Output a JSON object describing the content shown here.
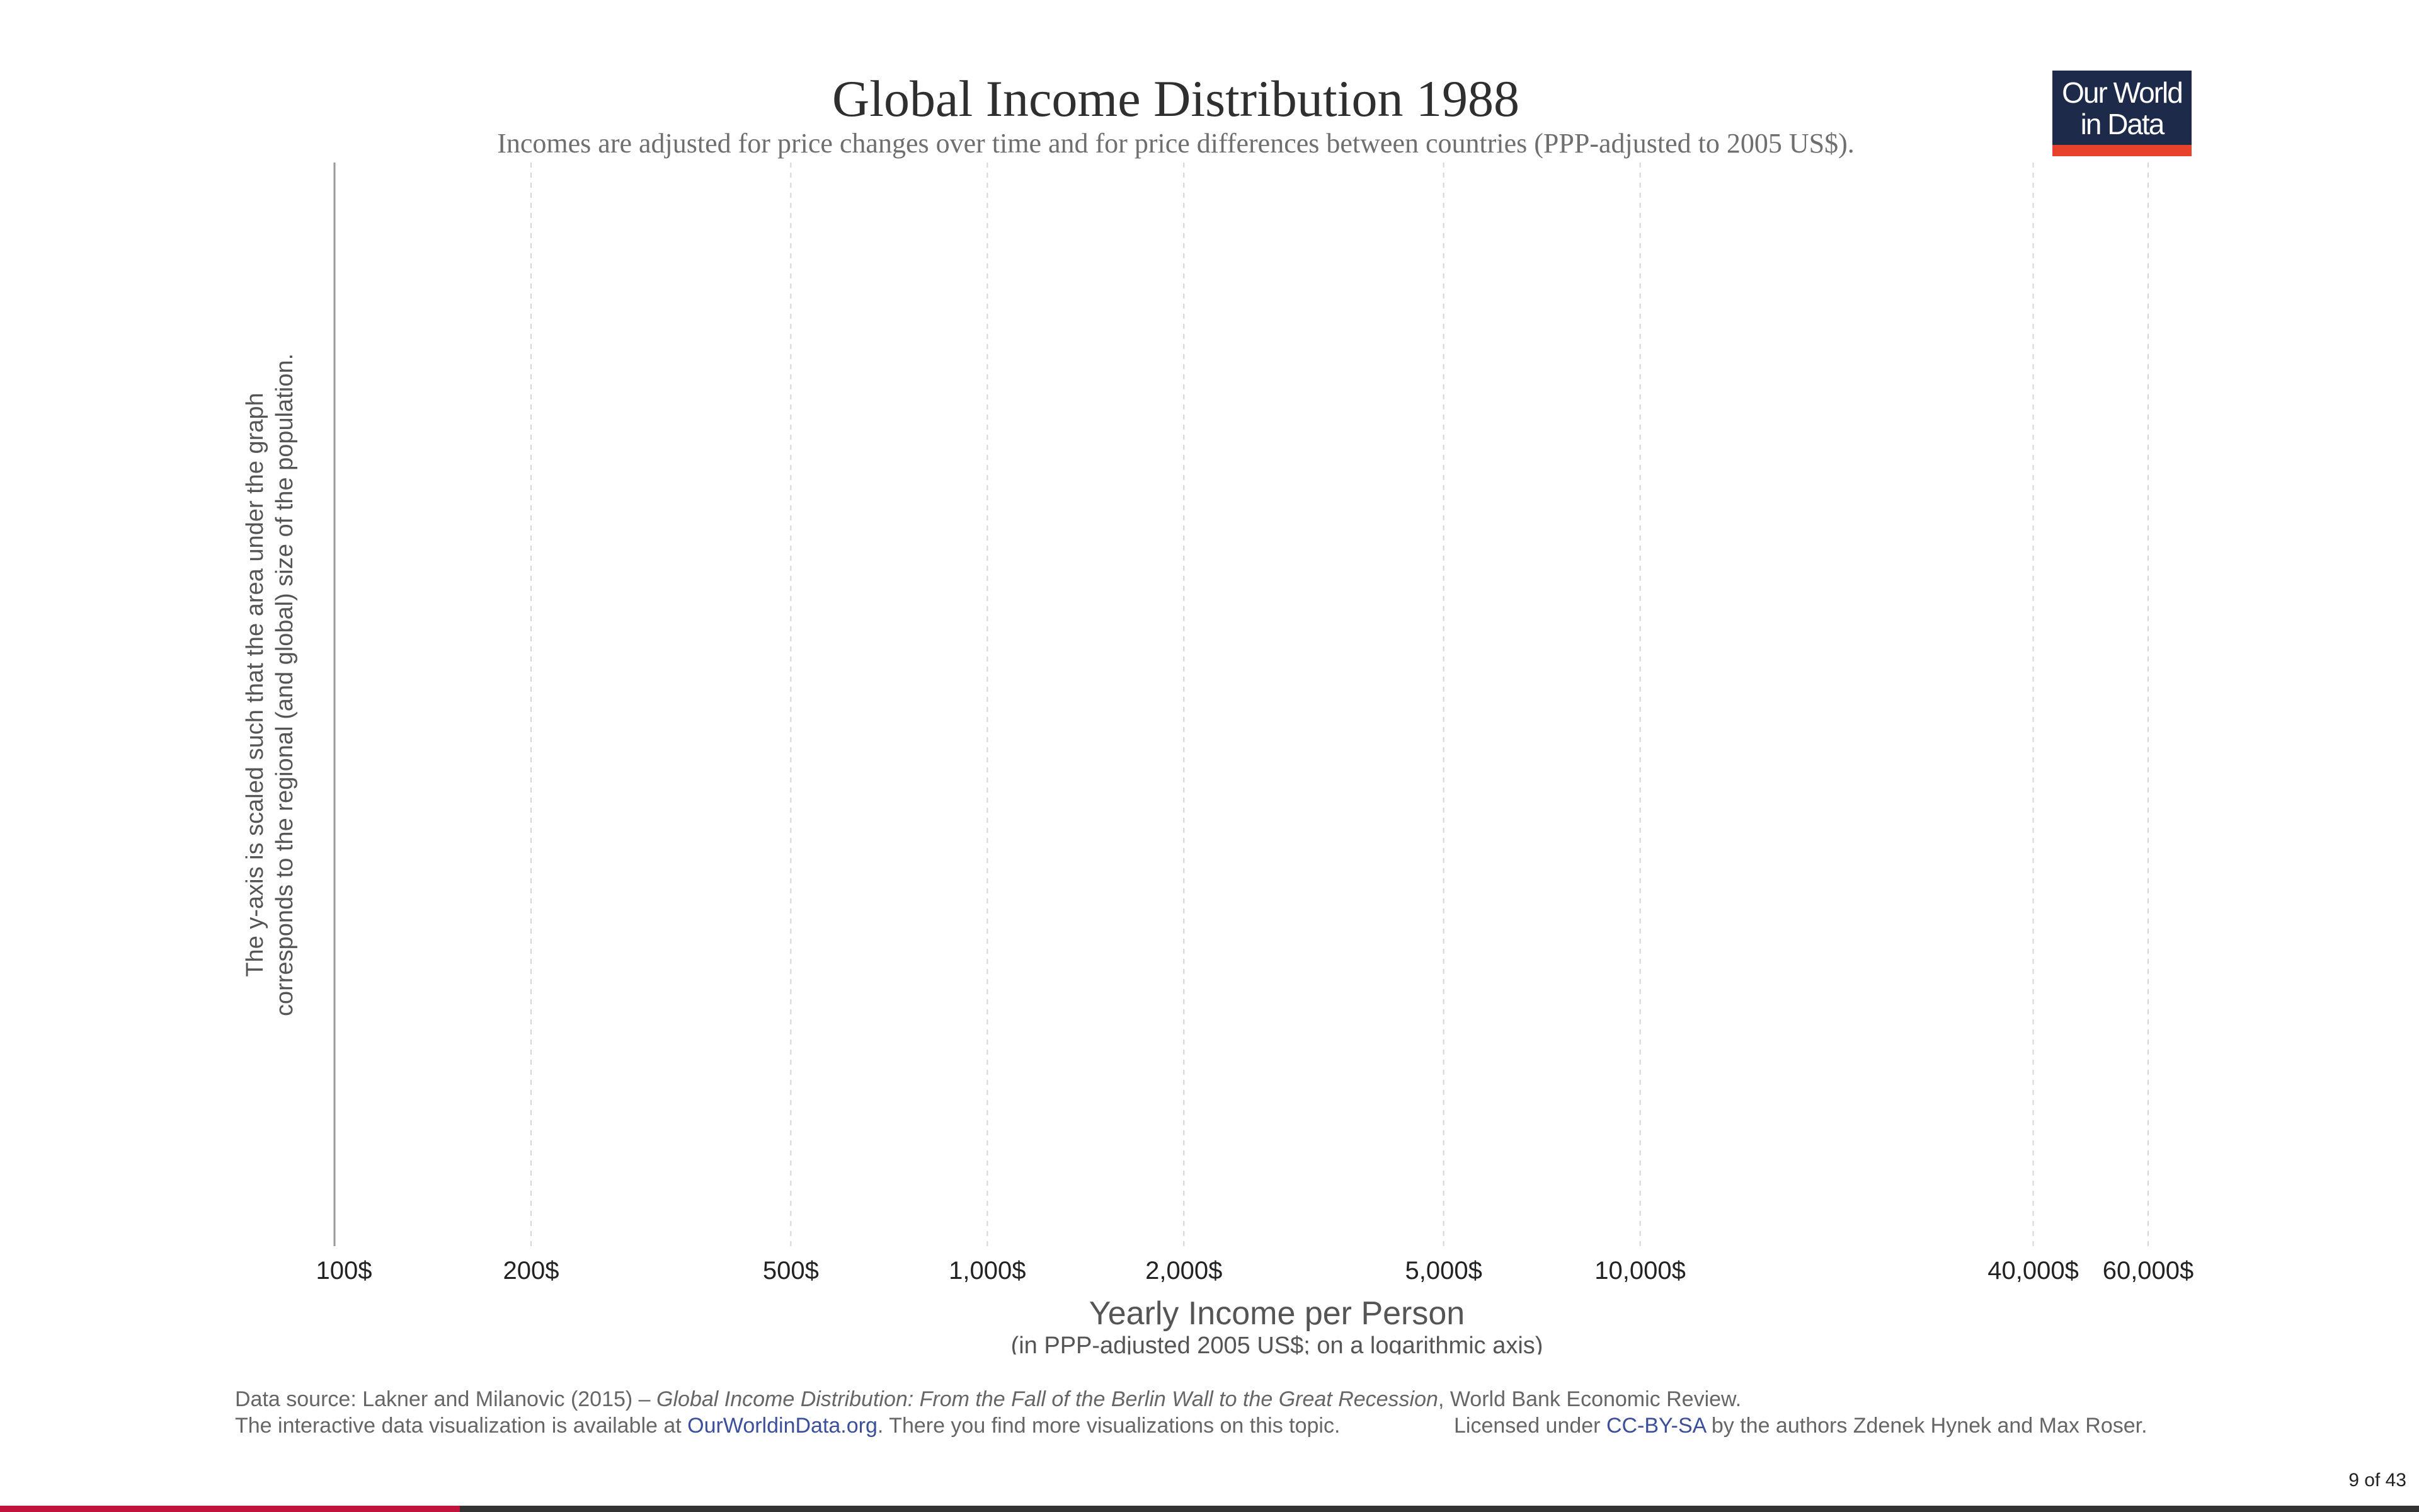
{
  "page": {
    "title": "Global Income Distribution 1988",
    "subtitle": "Incomes are adjusted for price changes over time and for price differences between countries (PPP-adjusted to 2005 US$).",
    "logo": {
      "line1": "Our World",
      "line2": "in Data",
      "bg_color": "#1d2a4a",
      "accent_color": "#e8422c"
    },
    "footer": {
      "source_prefix": "Data source: Lakner and Milanovic (2015) – ",
      "source_title": "Global Income Distribution: From the Fall of the Berlin Wall to the Great Recession",
      "source_suffix": ", World Bank Economic Review.",
      "interactive_prefix": "The interactive data visualization is available at ",
      "interactive_link": "OurWorldinData.org",
      "interactive_suffix": ". There you find more visualizations on this topic.",
      "license_prefix": "Licensed under ",
      "license_link": "CC-BY-SA",
      "license_suffix": " by the authors Zdenek Hynek and Max Roser."
    },
    "slide_counter": "9 of 43",
    "progress_fraction": 0.19
  },
  "chart_data": {
    "type": "area",
    "title": "Global Income Distribution 1988",
    "subtitle": "Incomes are adjusted for price changes over time and for price differences between countries (PPP-adjusted to 2005 US$).",
    "xlabel": "Yearly Income per Person",
    "xlabel_sub": "(in PPP-adjusted 2005 US$; on a logarithmic axis)",
    "ylabel_line1": "The y-axis is scaled such that the area under the graph",
    "ylabel_line2": "corresponds to the regional (and global) size of the population.",
    "x_scale": "log",
    "xlim": [
      100,
      60000
    ],
    "x_ticks": [
      {
        "value": 100,
        "label": "100$"
      },
      {
        "value": 200,
        "label": "200$"
      },
      {
        "value": 500,
        "label": "500$"
      },
      {
        "value": 1000,
        "label": "1,000$"
      },
      {
        "value": 2000,
        "label": "2,000$"
      },
      {
        "value": 5000,
        "label": "5,000$"
      },
      {
        "value": 10000,
        "label": "10,000$"
      },
      {
        "value": 40000,
        "label": "40,000$"
      },
      {
        "value": 60000,
        "label": "60,000$"
      }
    ],
    "grid": "vertical dashed",
    "series": []
  }
}
